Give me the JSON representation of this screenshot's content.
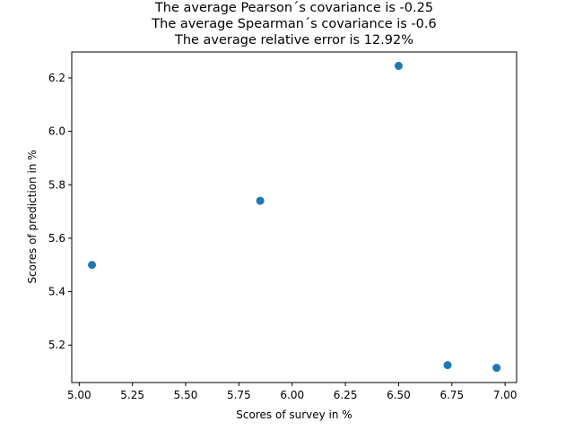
{
  "chart_data": {
    "type": "scatter",
    "title_lines": [
      "The average Pearson´s covariance is -0.25",
      "The average Spearman´s covariance is -0.6",
      "The average relative error is 12.92%"
    ],
    "xlabel": "Scores of survey in %",
    "ylabel": "Scores of prediction in %",
    "xlim": [
      4.965,
      7.054
    ],
    "ylim": [
      5.06,
      6.297
    ],
    "xticks": [
      5.0,
      5.25,
      5.5,
      5.75,
      6.0,
      6.25,
      6.5,
      6.75,
      7.0
    ],
    "xtick_labels": [
      "5.00",
      "5.25",
      "5.50",
      "5.75",
      "6.00",
      "6.25",
      "6.50",
      "6.75",
      "7.00"
    ],
    "yticks": [
      5.2,
      5.4,
      5.6,
      5.8,
      6.0,
      6.2
    ],
    "ytick_labels": [
      "5.2",
      "5.4",
      "5.6",
      "5.8",
      "6.0",
      "6.2"
    ],
    "series": [
      {
        "color": "#1f77b4",
        "x": [
          5.06,
          5.85,
          6.5,
          6.73,
          6.96
        ],
        "y": [
          5.5,
          5.74,
          6.245,
          5.125,
          5.115
        ]
      }
    ],
    "grid": false,
    "legend": false
  }
}
